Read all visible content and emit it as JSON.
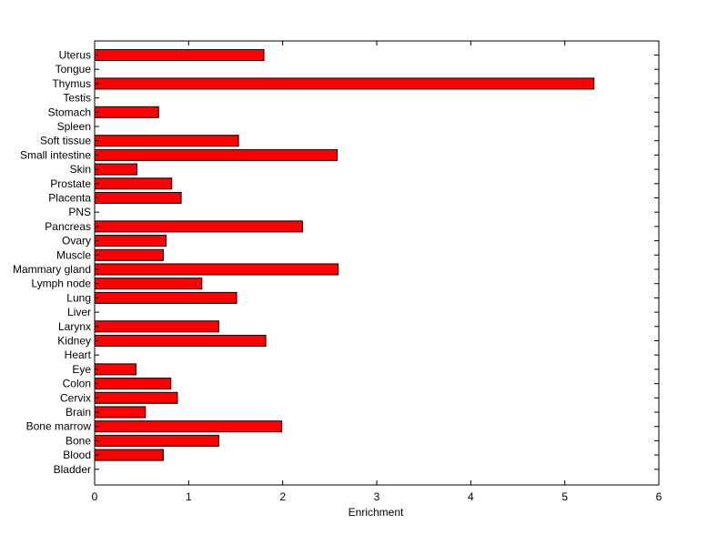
{
  "chart_data": {
    "type": "bar",
    "orientation": "horizontal",
    "title": "",
    "xlabel": "Enrichment",
    "ylabel": "",
    "xlim": [
      0,
      6
    ],
    "xticks": [
      0,
      1,
      2,
      3,
      4,
      5,
      6
    ],
    "grid": false,
    "legend": "none",
    "bar_color": "#ff0000",
    "bar_edge_color": "#000000",
    "categories": [
      "Bladder",
      "Blood",
      "Bone",
      "Bone marrow",
      "Brain",
      "Cervix",
      "Colon",
      "Eye",
      "Heart",
      "Kidney",
      "Larynx",
      "Liver",
      "Lung",
      "Lymph node",
      "Mammary gland",
      "Muscle",
      "Ovary",
      "Pancreas",
      "PNS",
      "Placenta",
      "Prostate",
      "Skin",
      "Small intestine",
      "Soft tissue",
      "Spleen",
      "Stomach",
      "Testis",
      "Thymus",
      "Tongue",
      "Uterus"
    ],
    "values": [
      0,
      0.73,
      1.32,
      1.99,
      0.54,
      0.88,
      0.81,
      0.44,
      0,
      1.82,
      1.32,
      0,
      1.51,
      1.14,
      2.59,
      0.73,
      0.76,
      2.21,
      0,
      0.92,
      0.82,
      0.45,
      2.58,
      1.53,
      0,
      0.68,
      0,
      5.31,
      0,
      1.8
    ]
  }
}
